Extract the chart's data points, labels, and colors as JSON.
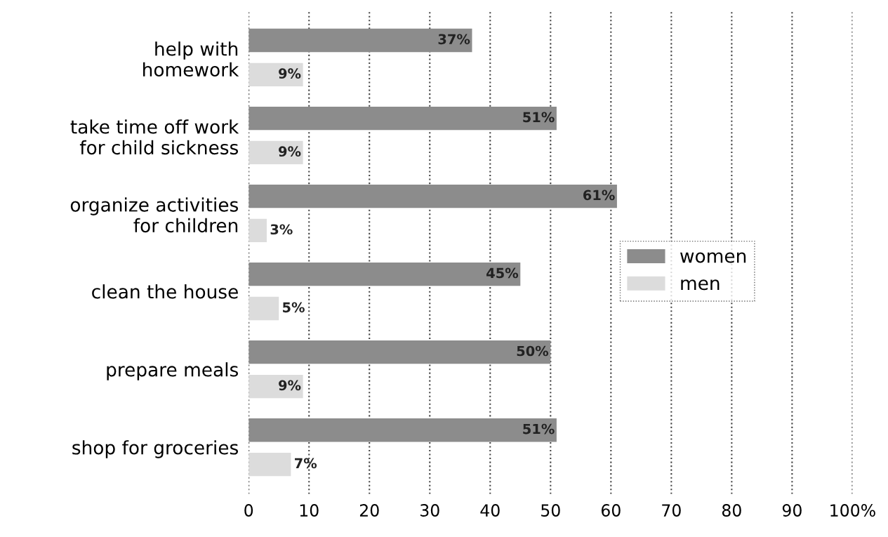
{
  "chart_data": {
    "type": "bar",
    "orientation": "horizontal",
    "categories": [
      "help with\nhomework",
      "take time off work\nfor child sickness",
      "organize activities\nfor children",
      "clean the house",
      "prepare meals",
      "shop for groceries"
    ],
    "series": [
      {
        "name": "women",
        "color": "#8c8c8c",
        "values": [
          37,
          51,
          61,
          45,
          50,
          51
        ],
        "value_labels": [
          "37%",
          "51%",
          "61%",
          "45%",
          "50%",
          "51%"
        ]
      },
      {
        "name": "men",
        "color": "#dcdcdc",
        "values": [
          9,
          9,
          3,
          5,
          9,
          7
        ],
        "value_labels": [
          "9%",
          "9%",
          "3%",
          "5%",
          "9%",
          "7%"
        ]
      }
    ],
    "xlim": [
      0,
      100
    ],
    "xticks": [
      0,
      10,
      20,
      30,
      40,
      50,
      60,
      70,
      80,
      90,
      {
        "value": 100,
        "label": "100%"
      }
    ],
    "grid": "x",
    "legend": "center right"
  }
}
